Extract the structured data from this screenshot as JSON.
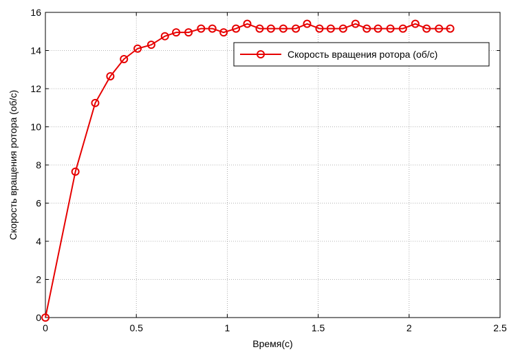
{
  "chart_data": {
    "type": "line",
    "xlabel": "Время(с)",
    "ylabel": "Скорость вращения ротора (об/с)",
    "xlim": [
      0,
      2.5
    ],
    "ylim": [
      0,
      16
    ],
    "x_ticks": [
      0,
      0.5,
      1,
      1.5,
      2,
      2.5
    ],
    "x_tick_labels": [
      "0",
      "0.5",
      "1",
      "1.5",
      "2",
      "2.5"
    ],
    "y_ticks": [
      0,
      2,
      4,
      6,
      8,
      10,
      12,
      14,
      16
    ],
    "y_tick_labels": [
      "0",
      "2",
      "4",
      "6",
      "8",
      "10",
      "12",
      "14",
      "16"
    ],
    "grid": true,
    "legend_position": "top-right",
    "series": [
      {
        "name": "Скорость вращения ротора (об/с)",
        "color": "#e60000",
        "marker": "circle",
        "x": [
          0,
          0.165,
          0.274,
          0.357,
          0.432,
          0.507,
          0.582,
          0.657,
          0.719,
          0.787,
          0.856,
          0.918,
          0.98,
          1.048,
          1.11,
          1.178,
          1.24,
          1.308,
          1.377,
          1.439,
          1.507,
          1.569,
          1.637,
          1.705,
          1.767,
          1.829,
          1.897,
          1.966,
          2.034,
          2.096,
          2.164,
          2.226
        ],
        "y": [
          0,
          7.65,
          11.25,
          12.65,
          13.55,
          14.1,
          14.3,
          14.75,
          14.95,
          14.95,
          15.15,
          15.15,
          14.95,
          15.15,
          15.4,
          15.15,
          15.15,
          15.15,
          15.15,
          15.4,
          15.15,
          15.15,
          15.15,
          15.4,
          15.15,
          15.15,
          15.15,
          15.15,
          15.4,
          15.15,
          15.15,
          15.15
        ]
      }
    ]
  }
}
